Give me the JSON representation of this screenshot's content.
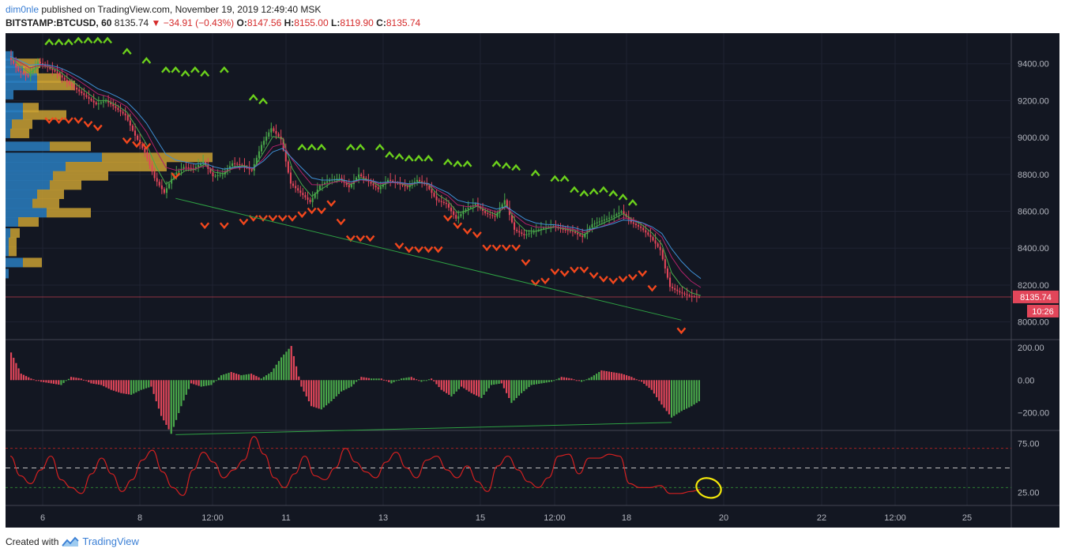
{
  "header": {
    "publisher": "dim0nle",
    "published_text": "published on TradingView.com, November 19, 2019 12:49:40 MSK",
    "symbol": "BITSTAMP:BTCUSD, 60",
    "last": "8135.74",
    "change": "−34.91 (−0.43%)",
    "o_label": "O:",
    "o": "8147.56",
    "h_label": "H:",
    "h": "8155.00",
    "l_label": "L:",
    "l": "8119.90",
    "c_label": "C:",
    "c": "8135.74"
  },
  "footer": {
    "created_with": "Created with",
    "brand": "TradingView"
  },
  "colors": {
    "bg": "#131722",
    "up": "#49a84a",
    "down": "#e2465a",
    "ema_fast": "#49a84a",
    "ema_mid": "#b0226a",
    "ema_slow": "#3f8fd4",
    "arrow_up": "#6cd11c",
    "arrow_down": "#f2471d",
    "vp_blue": "#2a7ec0",
    "vp_gold": "#c9a032",
    "rsi": "#d42020",
    "trendline": "#2ea043"
  },
  "chart_data": [
    {
      "type": "line",
      "title": "BITSTAMP:BTCUSD, 60",
      "ylim": [
        7930,
        9540
      ],
      "y_ticks": [
        "9400.00",
        "9200.00",
        "9000.00",
        "8800.00",
        "8600.00",
        "8400.00",
        "8200.00",
        "8000.00"
      ],
      "x_ticks": [
        "6",
        "8",
        "12:00",
        "11",
        "13",
        "15",
        "12:00",
        "18",
        "20",
        "22",
        "12:00",
        "25"
      ],
      "last_price_label": "8135.74",
      "countdown_label": "10:26",
      "series": [
        {
          "values": [
            9440,
            9360,
            9330,
            9410,
            9380,
            9350,
            9300,
            9260,
            9220,
            9180,
            9200,
            9160,
            9120,
            9010,
            8920,
            8780,
            8700,
            8800,
            8840,
            8830,
            8870,
            8790,
            8800,
            8860,
            8850,
            8820,
            8960,
            9050,
            8990,
            8750,
            8700,
            8650,
            8740,
            8770,
            8780,
            8730,
            8800,
            8760,
            8720,
            8770,
            8750,
            8730,
            8770,
            8740,
            8660,
            8640,
            8560,
            8610,
            8640,
            8590,
            8570,
            8660,
            8500,
            8470,
            8490,
            8510,
            8520,
            8500,
            8490,
            8460,
            8530,
            8550,
            8570,
            8600,
            8540,
            8510,
            8460,
            8390,
            8190,
            8160,
            8140,
            8135.74
          ]
        }
      ],
      "annotations": {
        "up_arrows": [
          [
            4,
            9520
          ],
          [
            5,
            9520
          ],
          [
            6,
            9520
          ],
          [
            7,
            9530
          ],
          [
            8,
            9530
          ],
          [
            9,
            9530
          ],
          [
            10,
            9530
          ],
          [
            12,
            9470
          ],
          [
            14,
            9420
          ],
          [
            16,
            9370
          ],
          [
            17,
            9370
          ],
          [
            18,
            9350
          ],
          [
            19,
            9370
          ],
          [
            20,
            9350
          ],
          [
            22,
            9370
          ],
          [
            25,
            9220
          ],
          [
            26,
            9200
          ],
          [
            30,
            8950
          ],
          [
            31,
            8950
          ],
          [
            32,
            8950
          ],
          [
            35,
            8950
          ],
          [
            36,
            8950
          ],
          [
            38,
            8950
          ],
          [
            39,
            8910
          ],
          [
            40,
            8900
          ],
          [
            41,
            8890
          ],
          [
            42,
            8890
          ],
          [
            43,
            8890
          ],
          [
            45,
            8870
          ],
          [
            46,
            8860
          ],
          [
            47,
            8860
          ],
          [
            50,
            8860
          ],
          [
            51,
            8850
          ],
          [
            52,
            8840
          ],
          [
            54,
            8810
          ],
          [
            56,
            8780
          ],
          [
            57,
            8780
          ],
          [
            58,
            8720
          ],
          [
            59,
            8700
          ],
          [
            60,
            8710
          ],
          [
            61,
            8720
          ],
          [
            62,
            8700
          ],
          [
            63,
            8680
          ],
          [
            64,
            8650
          ]
        ],
        "down_arrows": [
          [
            4,
            9090
          ],
          [
            5,
            9090
          ],
          [
            6,
            9090
          ],
          [
            7,
            9090
          ],
          [
            8,
            9070
          ],
          [
            9,
            9050
          ],
          [
            12,
            8980
          ],
          [
            13,
            8960
          ],
          [
            14,
            8950
          ],
          [
            17,
            8790
          ],
          [
            20,
            8520
          ],
          [
            22,
            8520
          ],
          [
            24,
            8540
          ],
          [
            25,
            8560
          ],
          [
            26,
            8560
          ],
          [
            27,
            8560
          ],
          [
            28,
            8560
          ],
          [
            29,
            8560
          ],
          [
            30,
            8580
          ],
          [
            31,
            8600
          ],
          [
            32,
            8600
          ],
          [
            33,
            8640
          ],
          [
            34,
            8540
          ],
          [
            35,
            8450
          ],
          [
            36,
            8450
          ],
          [
            37,
            8450
          ],
          [
            40,
            8410
          ],
          [
            41,
            8390
          ],
          [
            42,
            8390
          ],
          [
            43,
            8390
          ],
          [
            44,
            8390
          ],
          [
            45,
            8560
          ],
          [
            46,
            8520
          ],
          [
            47,
            8490
          ],
          [
            48,
            8470
          ],
          [
            49,
            8400
          ],
          [
            50,
            8400
          ],
          [
            51,
            8400
          ],
          [
            52,
            8400
          ],
          [
            53,
            8320
          ],
          [
            54,
            8210
          ],
          [
            55,
            8220
          ],
          [
            56,
            8270
          ],
          [
            57,
            8260
          ],
          [
            58,
            8280
          ],
          [
            59,
            8280
          ],
          [
            60,
            8250
          ],
          [
            61,
            8230
          ],
          [
            62,
            8220
          ],
          [
            63,
            8230
          ],
          [
            64,
            8240
          ],
          [
            65,
            8260
          ],
          [
            66,
            8180
          ],
          [
            69,
            7950
          ]
        ],
        "trendline": [
          [
            17,
            8670
          ],
          [
            69,
            8010
          ]
        ]
      }
    },
    {
      "type": "bar",
      "title": "",
      "ylim": [
        -280,
        220
      ],
      "y_ticks": [
        "200.00",
        "0.00",
        "−200.00"
      ],
      "values": [
        170,
        40,
        10,
        -10,
        -20,
        -30,
        20,
        10,
        -20,
        -30,
        -60,
        -80,
        -90,
        -60,
        -40,
        -220,
        -330,
        -160,
        -20,
        -40,
        -30,
        30,
        50,
        30,
        40,
        10,
        50,
        140,
        210,
        -40,
        -160,
        -180,
        -130,
        -70,
        -40,
        20,
        10,
        10,
        -20,
        10,
        20,
        -10,
        10,
        -60,
        -100,
        -40,
        -80,
        -110,
        -30,
        -20,
        -140,
        -80,
        -30,
        -20,
        -10,
        20,
        10,
        -10,
        20,
        60,
        50,
        40,
        20,
        -10,
        -60,
        -150,
        -230,
        -190,
        -160,
        -120
      ],
      "trendline": [
        [
          17,
          -335
        ],
        [
          68,
          -260
        ]
      ]
    },
    {
      "type": "line",
      "title": "",
      "ylim": [
        15,
        85
      ],
      "y_ticks": [
        "75.00",
        "25.00"
      ],
      "levels": [
        70,
        50,
        30
      ],
      "values": [
        62,
        42,
        34,
        48,
        62,
        38,
        30,
        24,
        44,
        60,
        44,
        26,
        38,
        58,
        68,
        46,
        30,
        22,
        48,
        66,
        56,
        40,
        48,
        58,
        82,
        64,
        40,
        30,
        44,
        62,
        42,
        38,
        50,
        70,
        56,
        46,
        40,
        56,
        66,
        50,
        40,
        58,
        62,
        48,
        40,
        52,
        36,
        26,
        52,
        62,
        48,
        36,
        30,
        40,
        62,
        64,
        44,
        60,
        60,
        64,
        62,
        34,
        30,
        30,
        32,
        24,
        24,
        26,
        28
      ]
    }
  ]
}
